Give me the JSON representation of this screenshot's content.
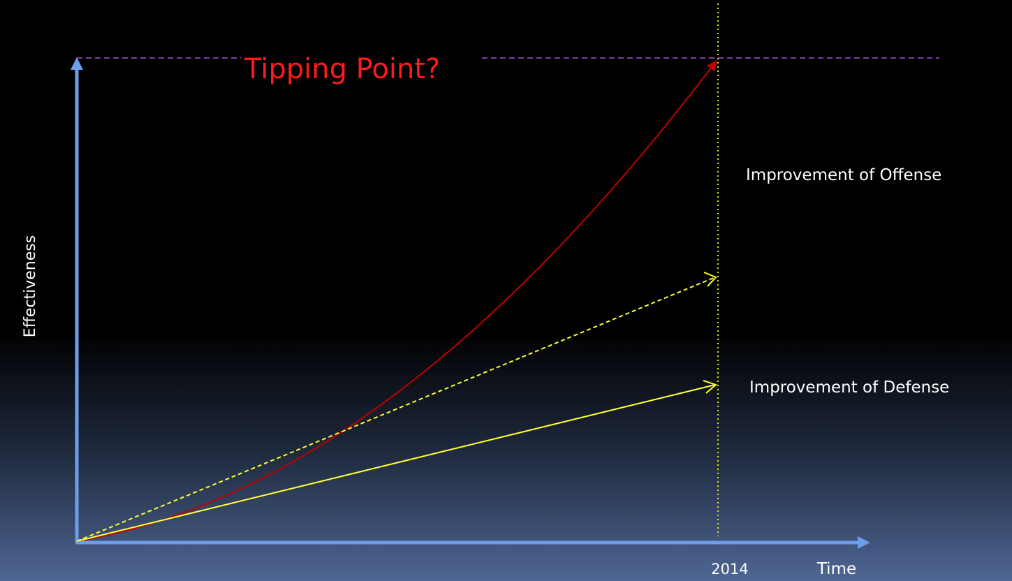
{
  "title": "Tipping Point?",
  "labels": {
    "offense": "Improvement of Offense",
    "defense": "Improvement of Defense"
  },
  "axes": {
    "y": "Effectiveness",
    "x": "Time",
    "marker": "2014"
  }
}
